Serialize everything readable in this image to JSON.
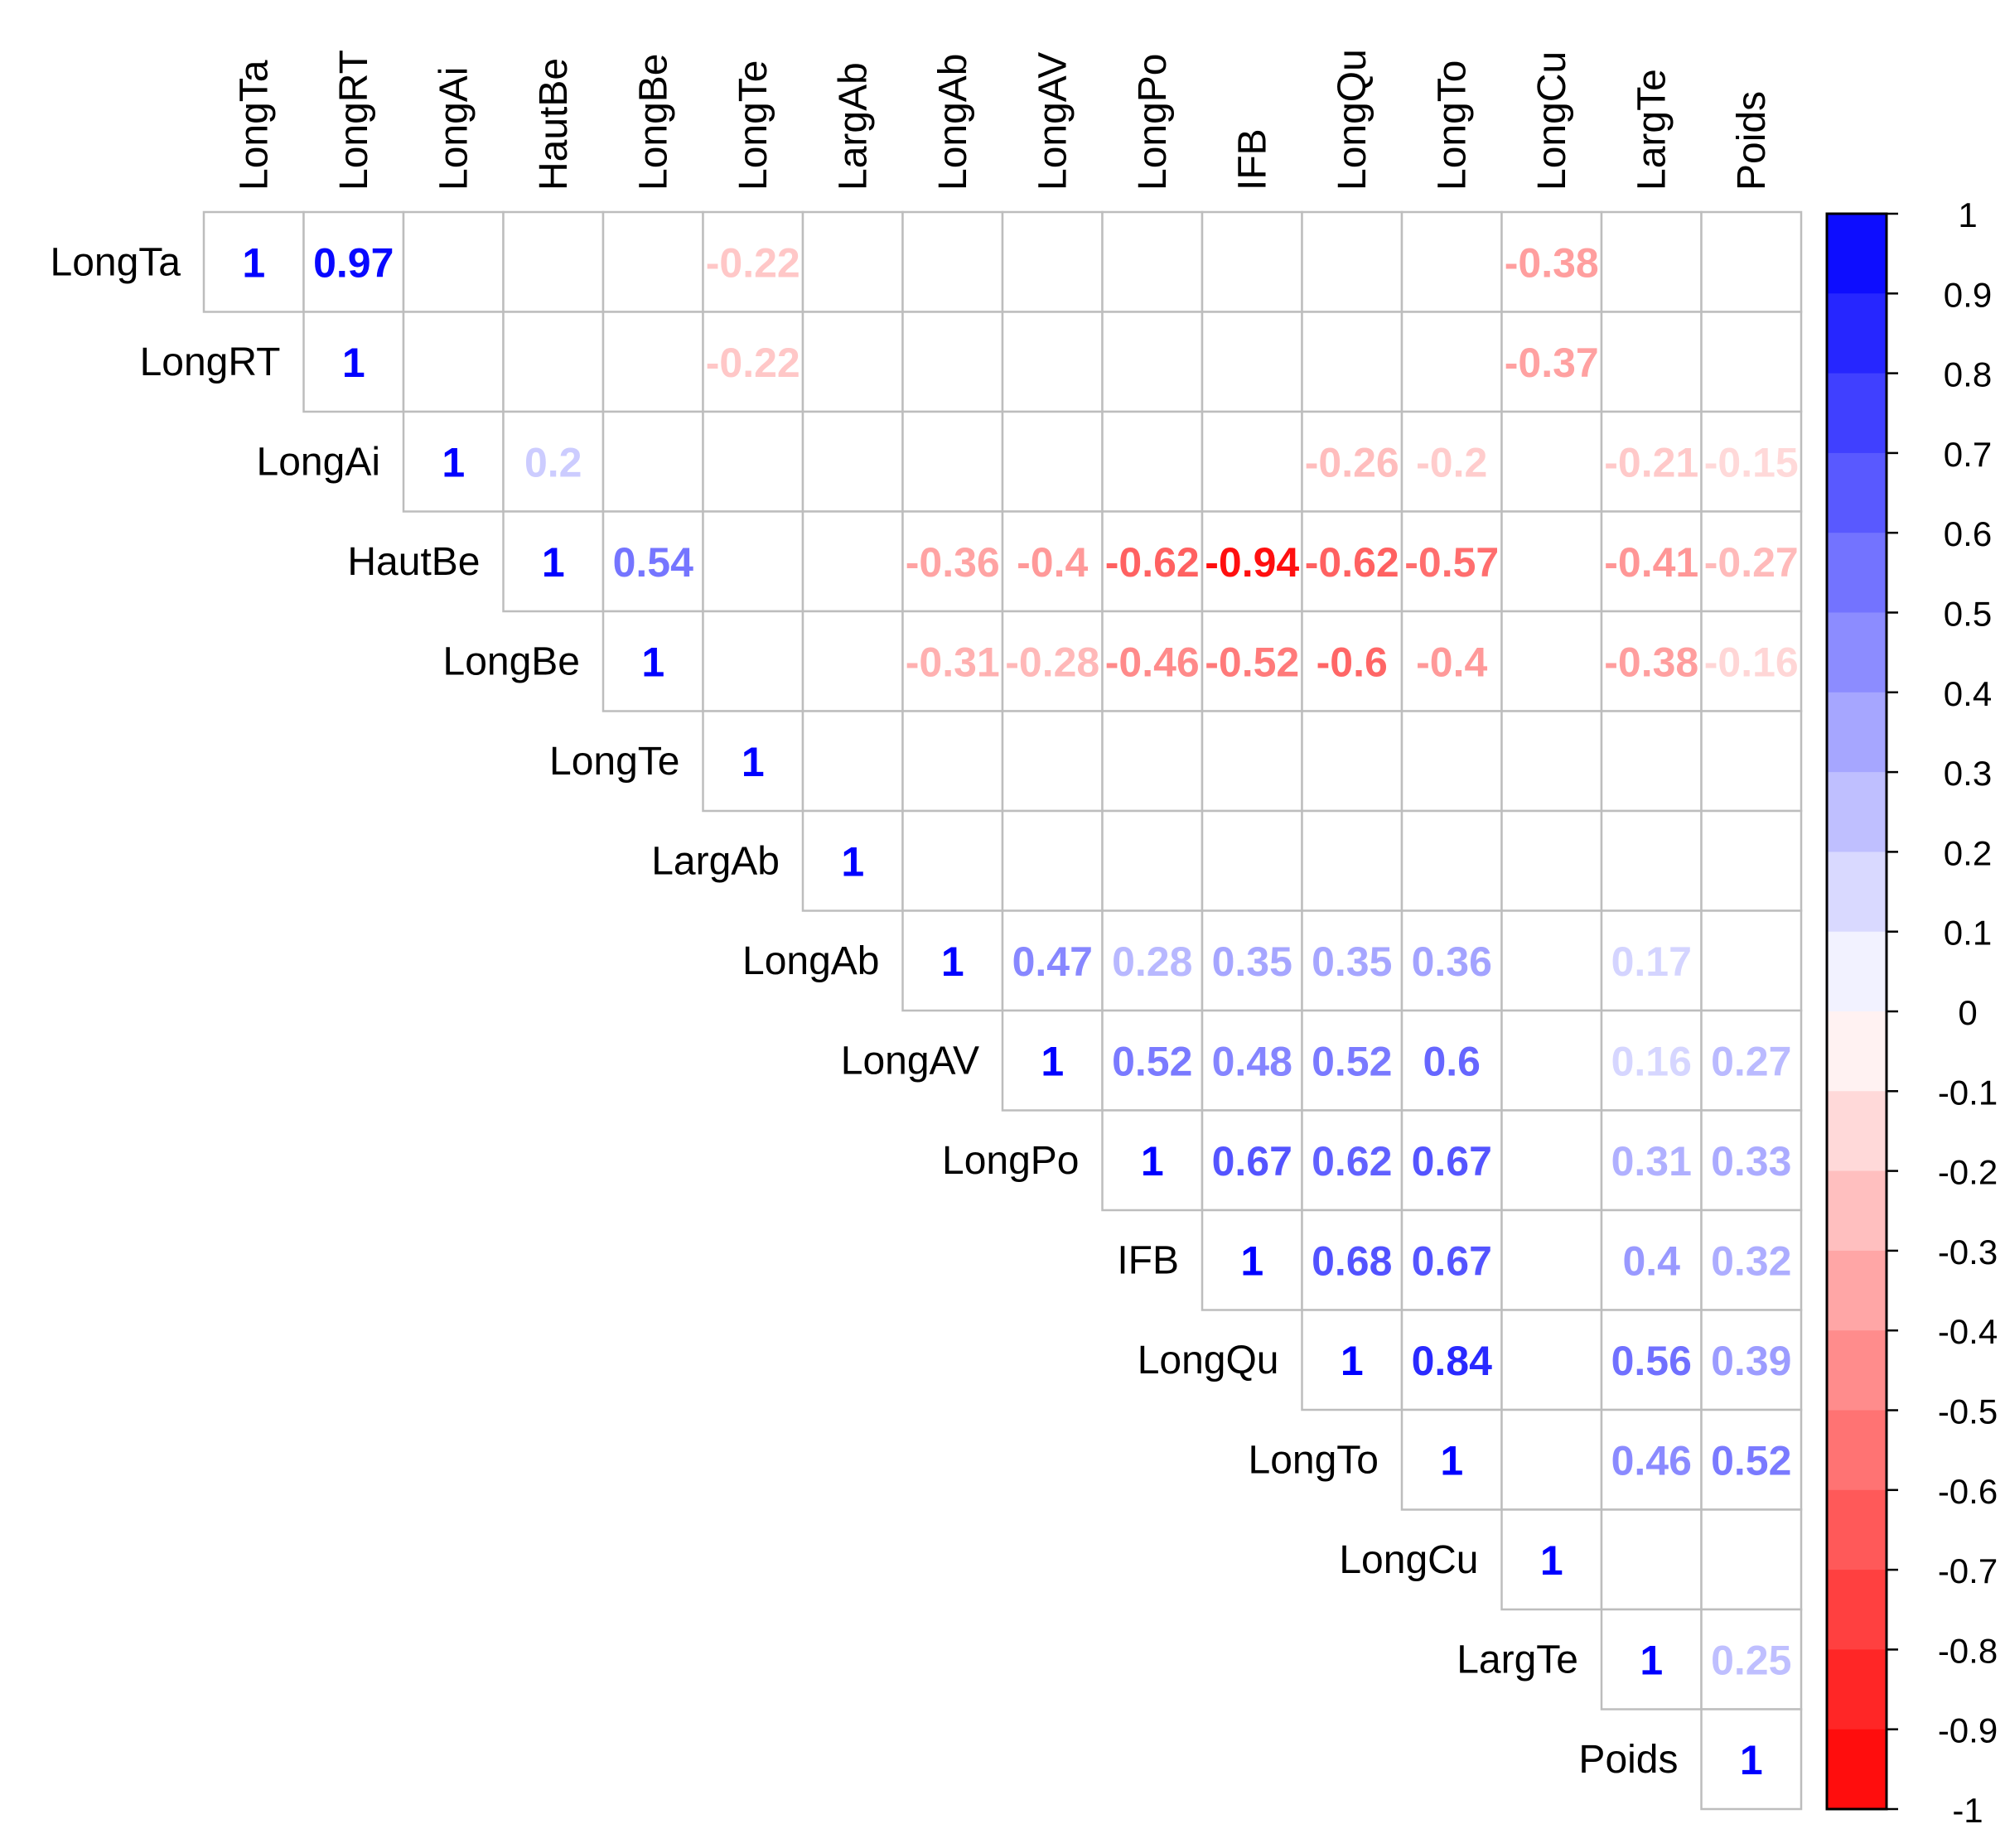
{
  "chart_data": {
    "type": "heatmap",
    "variant": "upper-triangle correlation matrix (corrplot, method=number)",
    "variables": [
      "LongTa",
      "LongRT",
      "LongAi",
      "HautBe",
      "LongBe",
      "LongTe",
      "LargAb",
      "LongAb",
      "LongAV",
      "LongPo",
      "IFB",
      "LongQu",
      "LongTo",
      "LongCu",
      "LargTe",
      "Poids"
    ],
    "column_labels_displayed": [
      "LongTa",
      "LongRT",
      "LongAi",
      "HautBe",
      "LongBe",
      "LongTe",
      "LargAb",
      "LongAb",
      "LongAV",
      "LongPo",
      "IFB",
      "LongQu",
      "LongTo",
      "LongCu",
      "LargTe",
      "Poids"
    ],
    "cells": [
      {
        "row": "LongTa",
        "col": "LongTa",
        "value": 1,
        "label": "1"
      },
      {
        "row": "LongTa",
        "col": "LongRT",
        "value": 0.97,
        "label": "0.97"
      },
      {
        "row": "LongTa",
        "col": "LongTe",
        "value": -0.22,
        "label": "-0.22"
      },
      {
        "row": "LongTa",
        "col": "LongCu",
        "value": -0.38,
        "label": "-0.38"
      },
      {
        "row": "LongRT",
        "col": "LongRT",
        "value": 1,
        "label": "1"
      },
      {
        "row": "LongRT",
        "col": "LongTe",
        "value": -0.22,
        "label": "-0.22"
      },
      {
        "row": "LongRT",
        "col": "LongCu",
        "value": -0.37,
        "label": "-0.37"
      },
      {
        "row": "LongAi",
        "col": "LongAi",
        "value": 1,
        "label": "1"
      },
      {
        "row": "LongAi",
        "col": "HautBe",
        "value": 0.2,
        "label": "0.2"
      },
      {
        "row": "LongAi",
        "col": "LongQu",
        "value": -0.26,
        "label": "-0.26"
      },
      {
        "row": "LongAi",
        "col": "LongTo",
        "value": -0.2,
        "label": "-0.2"
      },
      {
        "row": "LongAi",
        "col": "LargTe",
        "value": -0.21,
        "label": "-0.21"
      },
      {
        "row": "LongAi",
        "col": "Poids",
        "value": -0.15,
        "label": "-0.15"
      },
      {
        "row": "HautBe",
        "col": "HautBe",
        "value": 1,
        "label": "1"
      },
      {
        "row": "HautBe",
        "col": "LongBe",
        "value": 0.54,
        "label": "0.54"
      },
      {
        "row": "HautBe",
        "col": "LongAb",
        "value": -0.36,
        "label": "-0.36"
      },
      {
        "row": "HautBe",
        "col": "LongAV",
        "value": -0.4,
        "label": "-0.4"
      },
      {
        "row": "HautBe",
        "col": "LongPo",
        "value": -0.62,
        "label": "-0.62"
      },
      {
        "row": "HautBe",
        "col": "IFB",
        "value": -0.94,
        "label": "-0.94"
      },
      {
        "row": "HautBe",
        "col": "LongQu",
        "value": -0.62,
        "label": "-0.62"
      },
      {
        "row": "HautBe",
        "col": "LongTo",
        "value": -0.57,
        "label": "-0.57"
      },
      {
        "row": "HautBe",
        "col": "LargTe",
        "value": -0.41,
        "label": "-0.41"
      },
      {
        "row": "HautBe",
        "col": "Poids",
        "value": -0.27,
        "label": "-0.27"
      },
      {
        "row": "LongBe",
        "col": "LongBe",
        "value": 1,
        "label": "1"
      },
      {
        "row": "LongBe",
        "col": "LongAb",
        "value": -0.31,
        "label": "-0.31"
      },
      {
        "row": "LongBe",
        "col": "LongAV",
        "value": -0.28,
        "label": "-0.28"
      },
      {
        "row": "LongBe",
        "col": "LongPo",
        "value": -0.46,
        "label": "-0.46"
      },
      {
        "row": "LongBe",
        "col": "IFB",
        "value": -0.52,
        "label": "-0.52"
      },
      {
        "row": "LongBe",
        "col": "LongQu",
        "value": -0.6,
        "label": "-0.6"
      },
      {
        "row": "LongBe",
        "col": "LongTo",
        "value": -0.4,
        "label": "-0.4"
      },
      {
        "row": "LongBe",
        "col": "LargTe",
        "value": -0.38,
        "label": "-0.38"
      },
      {
        "row": "LongBe",
        "col": "Poids",
        "value": -0.16,
        "label": "-0.16"
      },
      {
        "row": "LongTe",
        "col": "LongTe",
        "value": 1,
        "label": "1"
      },
      {
        "row": "LargAb",
        "col": "LargAb",
        "value": 1,
        "label": "1"
      },
      {
        "row": "LongAb",
        "col": "LongAb",
        "value": 1,
        "label": "1"
      },
      {
        "row": "LongAb",
        "col": "LongAV",
        "value": 0.47,
        "label": "0.47"
      },
      {
        "row": "LongAb",
        "col": "LongPo",
        "value": 0.28,
        "label": "0.28"
      },
      {
        "row": "LongAb",
        "col": "IFB",
        "value": 0.35,
        "label": "0.35"
      },
      {
        "row": "LongAb",
        "col": "LongQu",
        "value": 0.35,
        "label": "0.35"
      },
      {
        "row": "LongAb",
        "col": "LongTo",
        "value": 0.36,
        "label": "0.36"
      },
      {
        "row": "LongAb",
        "col": "LargTe",
        "value": 0.17,
        "label": "0.17"
      },
      {
        "row": "LongAV",
        "col": "LongAV",
        "value": 1,
        "label": "1"
      },
      {
        "row": "LongAV",
        "col": "LongPo",
        "value": 0.52,
        "label": "0.52"
      },
      {
        "row": "LongAV",
        "col": "IFB",
        "value": 0.48,
        "label": "0.48"
      },
      {
        "row": "LongAV",
        "col": "LongQu",
        "value": 0.52,
        "label": "0.52"
      },
      {
        "row": "LongAV",
        "col": "LongTo",
        "value": 0.6,
        "label": "0.6"
      },
      {
        "row": "LongAV",
        "col": "LargTe",
        "value": 0.16,
        "label": "0.16"
      },
      {
        "row": "LongAV",
        "col": "Poids",
        "value": 0.27,
        "label": "0.27"
      },
      {
        "row": "LongPo",
        "col": "LongPo",
        "value": 1,
        "label": "1"
      },
      {
        "row": "LongPo",
        "col": "IFB",
        "value": 0.67,
        "label": "0.67"
      },
      {
        "row": "LongPo",
        "col": "LongQu",
        "value": 0.62,
        "label": "0.62"
      },
      {
        "row": "LongPo",
        "col": "LongTo",
        "value": 0.67,
        "label": "0.67"
      },
      {
        "row": "LongPo",
        "col": "LargTe",
        "value": 0.31,
        "label": "0.31"
      },
      {
        "row": "LongPo",
        "col": "Poids",
        "value": 0.33,
        "label": "0.33"
      },
      {
        "row": "IFB",
        "col": "IFB",
        "value": 1,
        "label": "1"
      },
      {
        "row": "IFB",
        "col": "LongQu",
        "value": 0.68,
        "label": "0.68"
      },
      {
        "row": "IFB",
        "col": "LongTo",
        "value": 0.67,
        "label": "0.67"
      },
      {
        "row": "IFB",
        "col": "LargTe",
        "value": 0.4,
        "label": "0.4"
      },
      {
        "row": "IFB",
        "col": "Poids",
        "value": 0.32,
        "label": "0.32"
      },
      {
        "row": "LongQu",
        "col": "LongQu",
        "value": 1,
        "label": "1"
      },
      {
        "row": "LongQu",
        "col": "LongTo",
        "value": 0.84,
        "label": "0.84"
      },
      {
        "row": "LongQu",
        "col": "LargTe",
        "value": 0.56,
        "label": "0.56"
      },
      {
        "row": "LongQu",
        "col": "Poids",
        "value": 0.39,
        "label": "0.39"
      },
      {
        "row": "LongTo",
        "col": "LongTo",
        "value": 1,
        "label": "1"
      },
      {
        "row": "LongTo",
        "col": "LargTe",
        "value": 0.46,
        "label": "0.46"
      },
      {
        "row": "LongTo",
        "col": "Poids",
        "value": 0.52,
        "label": "0.52"
      },
      {
        "row": "LongCu",
        "col": "LongCu",
        "value": 1,
        "label": "1"
      },
      {
        "row": "LargTe",
        "col": "LargTe",
        "value": 1,
        "label": "1"
      },
      {
        "row": "LargTe",
        "col": "Poids",
        "value": 0.25,
        "label": "0.25"
      },
      {
        "row": "Poids",
        "col": "Poids",
        "value": 1,
        "label": "1"
      }
    ],
    "colorbar": {
      "range": [
        -1,
        1
      ],
      "ticks": [
        "1",
        "0.9",
        "0.8",
        "0.7",
        "0.6",
        "0.5",
        "0.4",
        "0.3",
        "0.2",
        "0.1",
        "0",
        "-0.1",
        "-0.2",
        "-0.3",
        "-0.4",
        "-0.5",
        "-0.6",
        "-0.7",
        "-0.8",
        "-0.9",
        "-1"
      ],
      "bins": 20,
      "positive_color": "#0000ff",
      "negative_color": "#ff0000",
      "neutral_color": "#ffffff"
    },
    "grid": true,
    "legend_placement": "right"
  }
}
